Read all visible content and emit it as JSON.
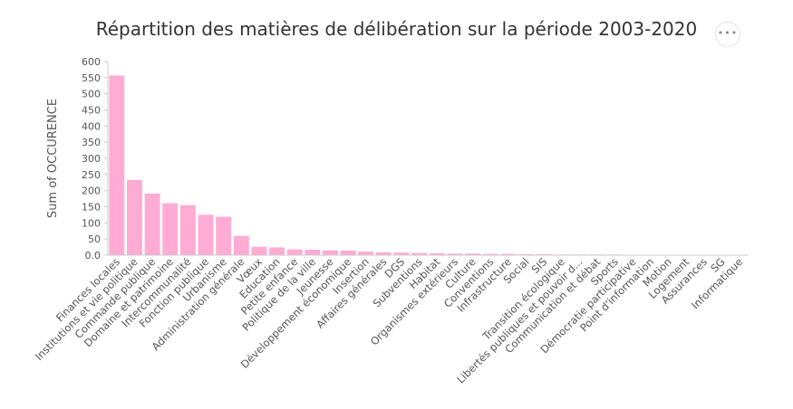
{
  "chart": {
    "title": "Répartition des matières de délibération sur la période 2003-2020",
    "menu_icon": "more-horizontal-icon",
    "menu_glyph": "•••"
  },
  "chart_data": {
    "type": "bar",
    "title": "Répartition des matières de délibération sur la période 2003-2020",
    "xlabel": "",
    "ylabel": "Sum of OCCURENCE",
    "ylim": [
      0,
      600
    ],
    "yticks": [
      "0.0",
      "50",
      "100",
      "150",
      "200",
      "250",
      "300",
      "350",
      "400",
      "450",
      "500",
      "550",
      "600"
    ],
    "grid": false,
    "bar_color": "#ffabd4",
    "categories": [
      "Finances locales",
      "Institutions et vie politique",
      "Commande publique",
      "Domaine et patrimoine",
      "Intercommunalité",
      "Fonction publique",
      "Urbanisme",
      "Administration générale",
      "Vœux",
      "Education",
      "Petite enfance",
      "Politique de la ville",
      "Jeunesse",
      "Développement économique",
      "Insertion",
      "Affaires générales",
      "DGS",
      "Subventions",
      "Habitat",
      "Organismes extérieurs",
      "Culture",
      "Conventions",
      "Infrastructure",
      "Social",
      "SIS",
      "Transition écologique",
      "Libertés publiques et pouvoir d...",
      "Communication et débat",
      "Sports",
      "Démocratie participative",
      "Point d'information",
      "Motion",
      "Logement",
      "Assurances",
      "SG",
      "Informatique"
    ],
    "values": [
      557,
      233,
      191,
      161,
      155,
      125,
      119,
      60,
      26,
      24,
      18,
      17,
      15,
      14,
      11,
      9,
      8,
      7,
      6,
      5,
      5,
      4,
      4,
      3,
      3,
      2,
      2,
      2,
      2,
      1,
      1,
      1,
      1,
      1,
      1,
      1
    ]
  }
}
